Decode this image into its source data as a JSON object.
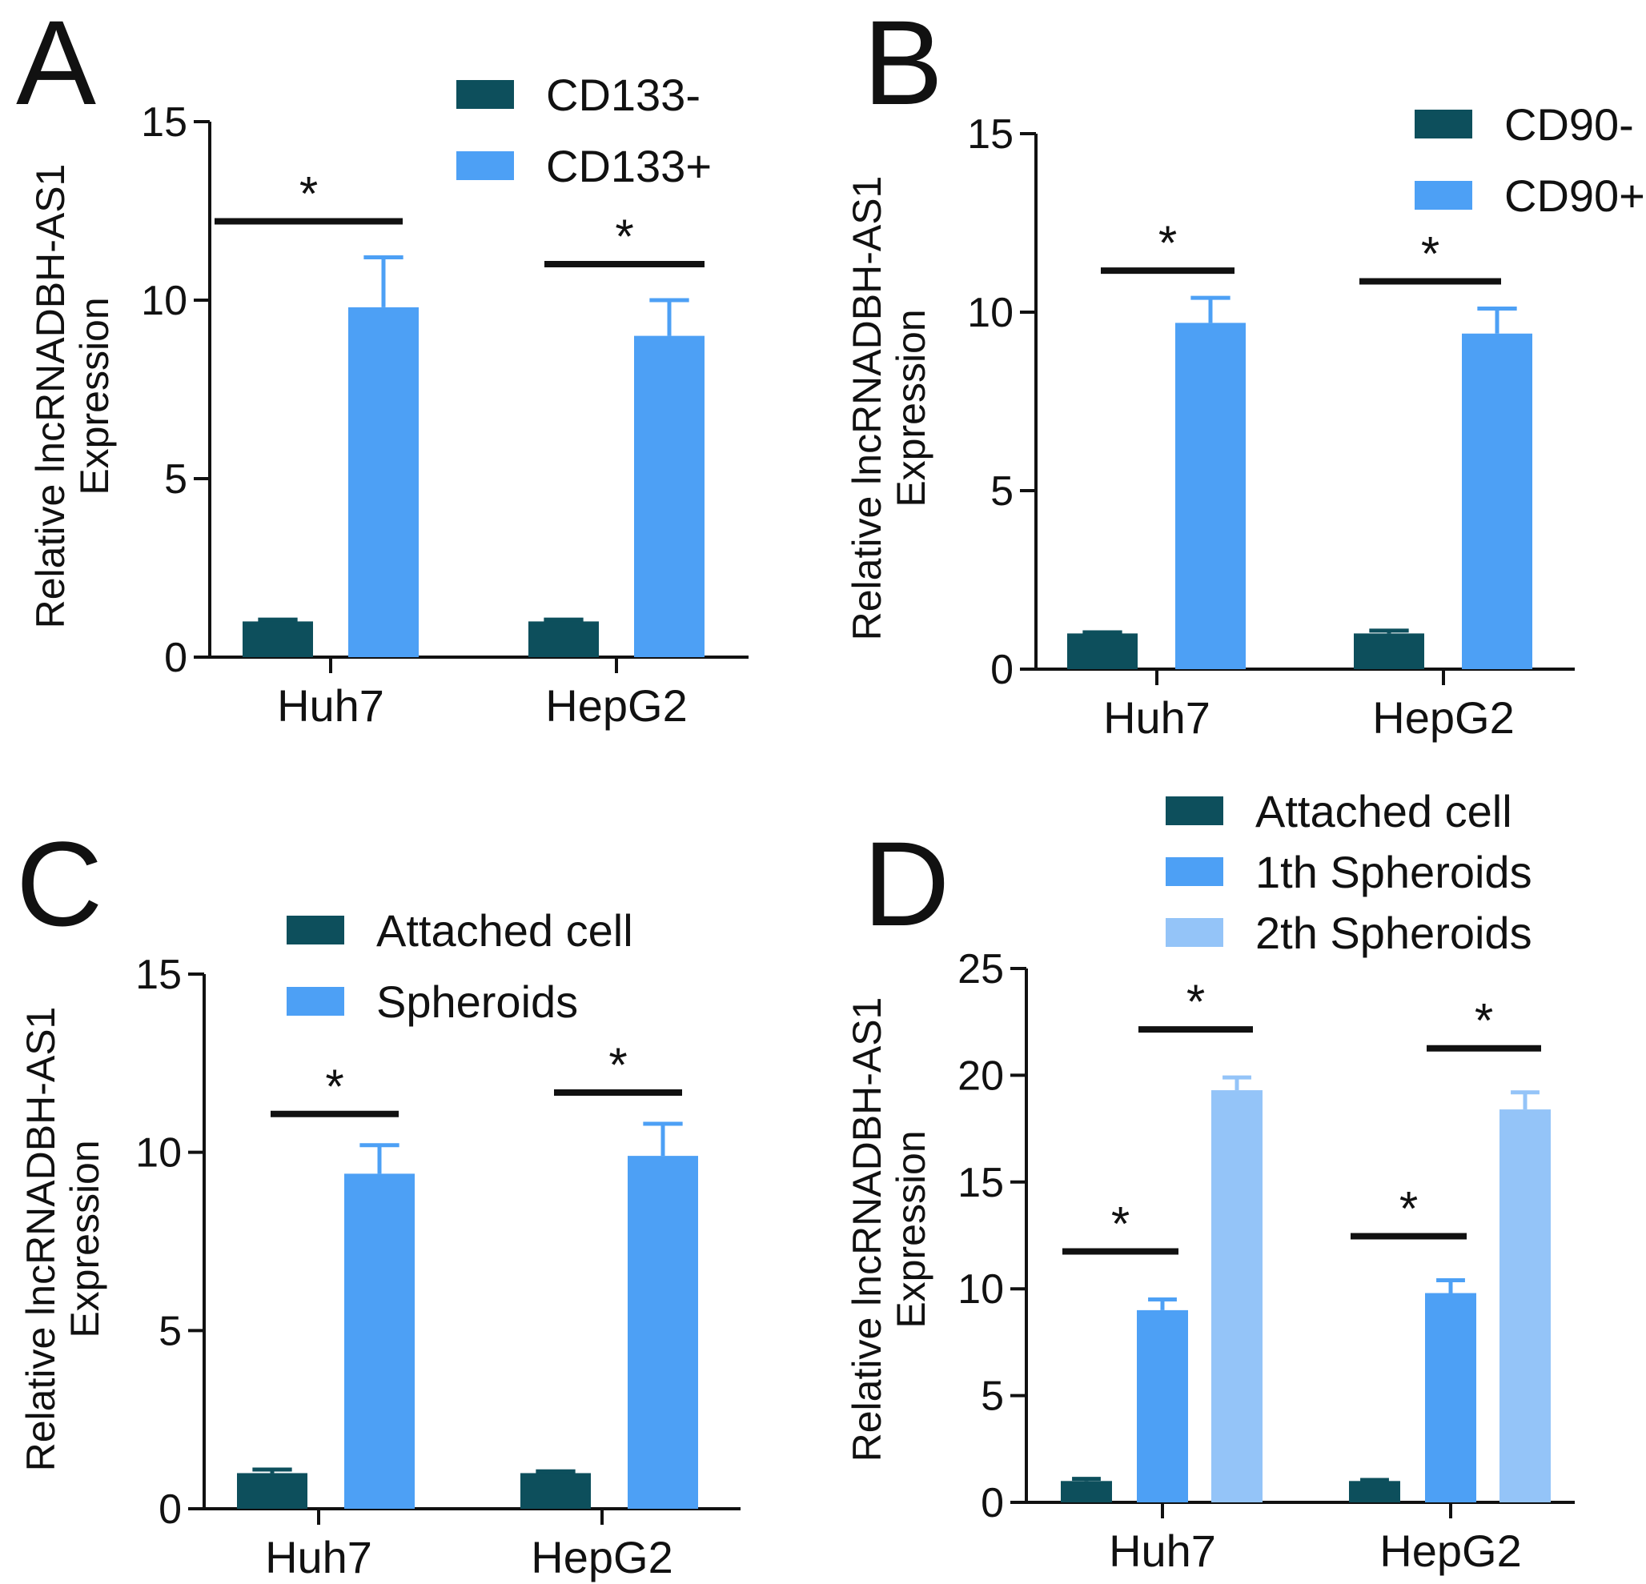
{
  "chart_data": [
    {
      "panel": "A",
      "type": "bar",
      "categories": [
        "Huh7",
        "HepG2"
      ],
      "series": [
        {
          "name": "CD133-",
          "color": "#0d4f5c",
          "values": [
            1.0,
            1.0
          ],
          "errors": [
            0.05,
            0.05
          ]
        },
        {
          "name": "CD133+",
          "color": "#4da0f5",
          "values": [
            9.8,
            9.0
          ],
          "errors": [
            1.4,
            1.0
          ]
        }
      ],
      "ylabel": [
        "Relative lncRNADBH-AS1",
        "Expression"
      ],
      "ylim": [
        0,
        15
      ],
      "yticks": [
        0,
        5,
        10,
        15
      ],
      "significance": [
        {
          "category": 0,
          "label": "*"
        },
        {
          "category": 1,
          "label": "*"
        }
      ]
    },
    {
      "panel": "B",
      "type": "bar",
      "categories": [
        "Huh7",
        "HepG2"
      ],
      "series": [
        {
          "name": "CD90-",
          "color": "#0d4f5c",
          "values": [
            1.0,
            1.0
          ],
          "errors": [
            0.03,
            0.08
          ]
        },
        {
          "name": "CD90+",
          "color": "#4da0f5",
          "values": [
            9.7,
            9.4
          ],
          "errors": [
            0.7,
            0.7
          ]
        }
      ],
      "ylabel": [
        "Relative lncRNADBH-AS1",
        "Expression"
      ],
      "ylim": [
        0,
        15
      ],
      "yticks": [
        0,
        5,
        10,
        15
      ],
      "significance": [
        {
          "category": 0,
          "label": "*"
        },
        {
          "category": 1,
          "label": "*"
        }
      ]
    },
    {
      "panel": "C",
      "type": "bar",
      "categories": [
        "Huh7",
        "HepG2"
      ],
      "series": [
        {
          "name": "Attached cell",
          "color": "#0d4f5c",
          "values": [
            1.0,
            1.0
          ],
          "errors": [
            0.1,
            0.05
          ]
        },
        {
          "name": "Spheroids",
          "color": "#4da0f5",
          "values": [
            9.4,
            9.9
          ],
          "errors": [
            0.8,
            0.9
          ]
        }
      ],
      "ylabel": [
        "Relative lncRNADBH-AS1",
        "Expression"
      ],
      "ylim": [
        0,
        15
      ],
      "yticks": [
        0,
        5,
        10,
        15
      ],
      "significance": [
        {
          "category": 0,
          "label": "*"
        },
        {
          "category": 1,
          "label": "*"
        }
      ]
    },
    {
      "panel": "D",
      "type": "bar",
      "categories": [
        "Huh7",
        "HepG2"
      ],
      "series": [
        {
          "name": "Attached cell",
          "color": "#0d4f5c",
          "values": [
            1.0,
            1.0
          ],
          "errors": [
            0.1,
            0.05
          ]
        },
        {
          "name": "1th Spheroids",
          "color": "#4da0f5",
          "values": [
            9.0,
            9.8
          ],
          "errors": [
            0.5,
            0.6
          ]
        },
        {
          "name": "2th Spheroids",
          "color": "#94c4f8",
          "values": [
            19.3,
            18.4
          ],
          "errors": [
            0.6,
            0.8
          ]
        }
      ],
      "ylabel": [
        "Relative lncRNADBH-AS1",
        "Expression"
      ],
      "ylim": [
        0,
        25
      ],
      "yticks": [
        0,
        5,
        10,
        15,
        20,
        25
      ],
      "significance": [
        {
          "category": 0,
          "label": "*",
          "between": [
            0,
            1
          ]
        },
        {
          "category": 0,
          "label": "*",
          "between": [
            1,
            2
          ]
        },
        {
          "category": 1,
          "label": "*",
          "between": [
            0,
            1
          ]
        },
        {
          "category": 1,
          "label": "*",
          "between": [
            1,
            2
          ]
        }
      ]
    }
  ]
}
